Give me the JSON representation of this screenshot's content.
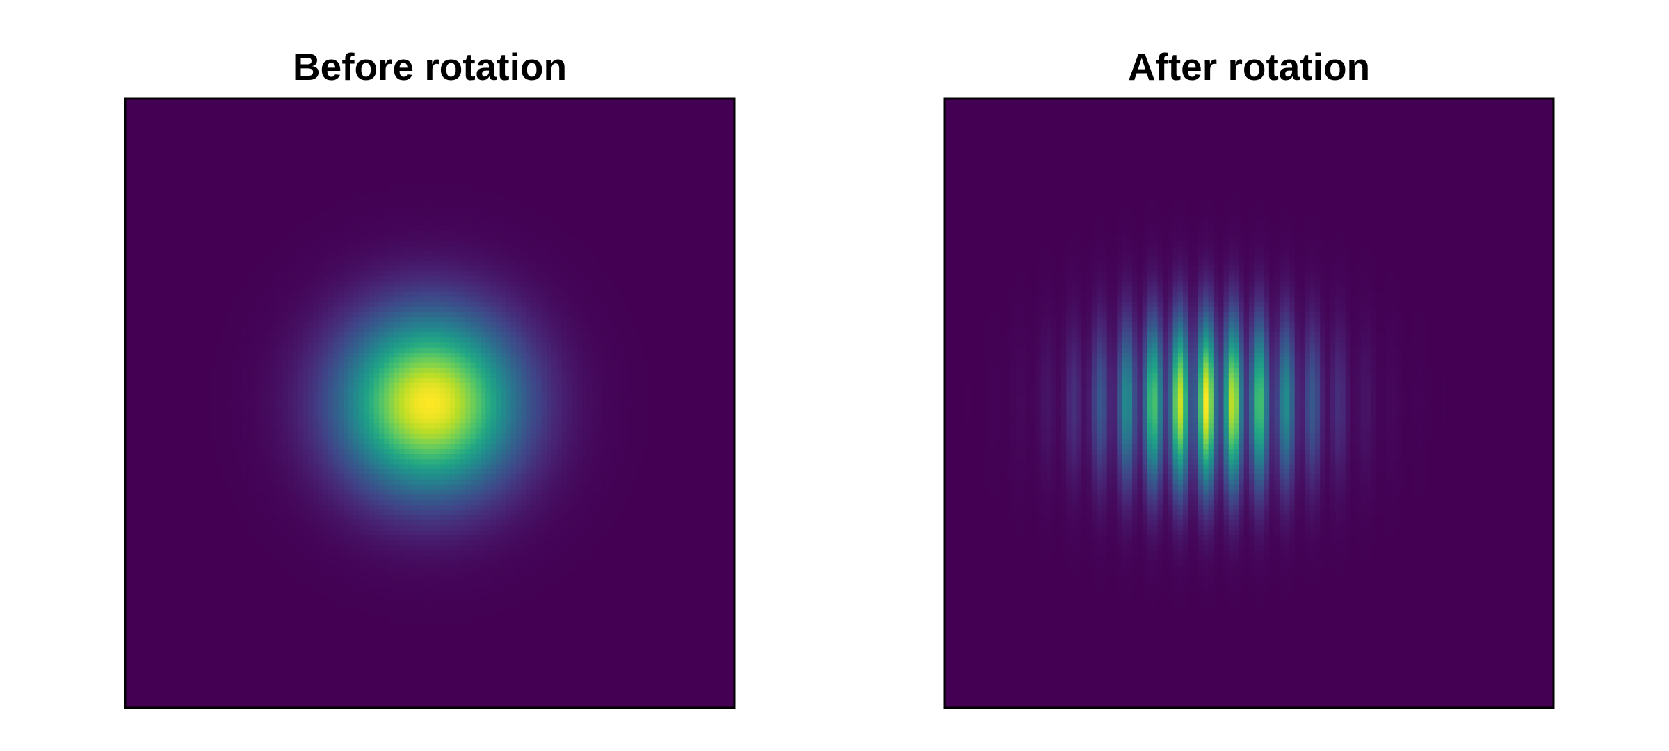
{
  "chart_data": [
    {
      "type": "heatmap",
      "title": "Before rotation",
      "xlabel": "",
      "ylabel": "",
      "colormap": "viridis",
      "axes_visible": false,
      "grid": false,
      "field": {
        "kind": "gaussian",
        "center": [
          0.5,
          0.5
        ],
        "sigma_x": 0.1,
        "sigma_y": 0.1,
        "fringes": null
      }
    },
    {
      "type": "heatmap",
      "title": "After rotation",
      "xlabel": "",
      "ylabel": "",
      "colormap": "viridis",
      "axes_visible": false,
      "grid": false,
      "field": {
        "kind": "gaussian_with_vertical_fringes",
        "center": [
          0.43,
          0.5
        ],
        "sigma_x": 0.11,
        "sigma_y": 0.095,
        "fringes": {
          "orientation": "vertical",
          "period": 0.088,
          "baseline": 0.22
        }
      }
    }
  ],
  "colors": {
    "background": "#ffffff",
    "frame": "#000000",
    "viridis_low": "#440154",
    "viridis_mid": "#21918c",
    "viridis_high": "#fde725"
  }
}
